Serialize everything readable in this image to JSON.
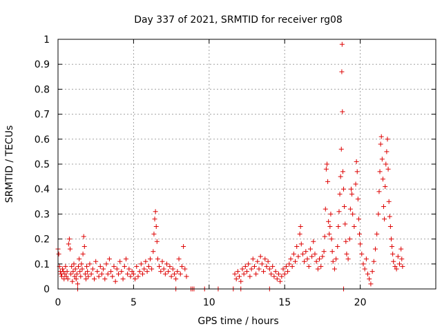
{
  "chart_data": {
    "type": "scatter",
    "title": "Day 337 of 2021, SRMTID for receiver rg08",
    "xlabel": "GPS time / hours",
    "ylabel": "SRMTID / TECUs",
    "xlim": [
      0,
      25
    ],
    "ylim": [
      0,
      1
    ],
    "xticks": [
      0,
      5,
      10,
      15,
      20
    ],
    "xtick_labels": [
      "0",
      "5",
      "10",
      "15",
      "20"
    ],
    "yticks": [
      0,
      0.1,
      0.2,
      0.3,
      0.4,
      0.5,
      0.6,
      0.7,
      0.8,
      0.9,
      1
    ],
    "ytick_labels": [
      "0",
      "0.1",
      "0.2",
      "0.3",
      "0.4",
      "0.5",
      "0.6",
      "0.7",
      "0.8",
      "0.9",
      "1"
    ],
    "grid": true,
    "marker": "+",
    "marker_color": "#dd0000",
    "series": [
      {
        "name": "SRMTID",
        "points": [
          [
            0.0,
            0.16
          ],
          [
            0.05,
            0.14
          ],
          [
            0.1,
            0.09
          ],
          [
            0.15,
            0.07
          ],
          [
            0.2,
            0.06
          ],
          [
            0.25,
            0.05
          ],
          [
            0.3,
            0.08
          ],
          [
            0.35,
            0.07
          ],
          [
            0.4,
            0.04
          ],
          [
            0.45,
            0.06
          ],
          [
            0.5,
            0.09
          ],
          [
            0.55,
            0.05
          ],
          [
            0.6,
            0.07
          ],
          [
            0.65,
            0.04
          ],
          [
            0.7,
            0.18
          ],
          [
            0.75,
            0.2
          ],
          [
            0.8,
            0.16
          ],
          [
            0.85,
            0.06
          ],
          [
            0.9,
            0.09
          ],
          [
            0.95,
            0.03
          ],
          [
            1.0,
            0.07
          ],
          [
            1.05,
            0.1
          ],
          [
            1.1,
            0.05
          ],
          [
            1.15,
            0.08
          ],
          [
            1.2,
            0.04
          ],
          [
            1.25,
            0.06
          ],
          [
            1.3,
            0.02
          ],
          [
            1.35,
            0.09
          ],
          [
            1.4,
            0.12
          ],
          [
            1.45,
            0.07
          ],
          [
            1.5,
            0.05
          ],
          [
            1.55,
            0.1
          ],
          [
            1.6,
            0.08
          ],
          [
            1.65,
            0.14
          ],
          [
            1.7,
            0.21
          ],
          [
            1.75,
            0.17
          ],
          [
            1.8,
            0.06
          ],
          [
            1.85,
            0.04
          ],
          [
            1.9,
            0.09
          ],
          [
            1.95,
            0.07
          ],
          [
            2.0,
            0.05
          ],
          [
            2.1,
            0.1
          ],
          [
            2.2,
            0.06
          ],
          [
            2.3,
            0.08
          ],
          [
            2.4,
            0.04
          ],
          [
            2.5,
            0.11
          ],
          [
            2.6,
            0.07
          ],
          [
            2.7,
            0.05
          ],
          [
            2.8,
            0.09
          ],
          [
            2.9,
            0.06
          ],
          [
            3.0,
            0.08
          ],
          [
            3.1,
            0.04
          ],
          [
            3.2,
            0.1
          ],
          [
            3.3,
            0.06
          ],
          [
            3.4,
            0.12
          ],
          [
            3.5,
            0.07
          ],
          [
            3.6,
            0.05
          ],
          [
            3.7,
            0.09
          ],
          [
            3.8,
            0.03
          ],
          [
            3.9,
            0.08
          ],
          [
            4.0,
            0.06
          ],
          [
            4.1,
            0.11
          ],
          [
            4.2,
            0.07
          ],
          [
            4.3,
            0.04
          ],
          [
            4.4,
            0.09
          ],
          [
            4.5,
            0.12
          ],
          [
            4.6,
            0.06
          ],
          [
            4.7,
            0.08
          ],
          [
            4.8,
            0.05
          ],
          [
            4.9,
            0.07
          ],
          [
            5.0,
            0.06
          ],
          [
            5.1,
            0.04
          ],
          [
            5.2,
            0.09
          ],
          [
            5.3,
            0.05
          ],
          [
            5.4,
            0.07
          ],
          [
            5.5,
            0.1
          ],
          [
            5.6,
            0.06
          ],
          [
            5.7,
            0.08
          ],
          [
            5.8,
            0.11
          ],
          [
            5.9,
            0.07
          ],
          [
            6.0,
            0.09
          ],
          [
            6.1,
            0.12
          ],
          [
            6.2,
            0.08
          ],
          [
            6.3,
            0.15
          ],
          [
            6.35,
            0.22
          ],
          [
            6.4,
            0.28
          ],
          [
            6.45,
            0.31
          ],
          [
            6.5,
            0.25
          ],
          [
            6.55,
            0.19
          ],
          [
            6.6,
            0.12
          ],
          [
            6.7,
            0.09
          ],
          [
            6.8,
            0.07
          ],
          [
            6.9,
            0.11
          ],
          [
            7.0,
            0.08
          ],
          [
            7.1,
            0.06
          ],
          [
            7.2,
            0.1
          ],
          [
            7.3,
            0.07
          ],
          [
            7.4,
            0.09
          ],
          [
            7.5,
            0.05
          ],
          [
            7.6,
            0.08
          ],
          [
            7.7,
            0.06
          ],
          [
            7.8,
            0.04
          ],
          [
            7.9,
            0.07
          ],
          [
            8.0,
            0.12
          ],
          [
            8.1,
            0.06
          ],
          [
            8.2,
            0.09
          ],
          [
            8.3,
            0.17
          ],
          [
            8.4,
            0.08
          ],
          [
            8.5,
            0.05
          ],
          [
            7.8,
            0.0
          ],
          [
            8.8,
            0.0
          ],
          [
            8.9,
            0.0
          ],
          [
            9.0,
            0.0
          ],
          [
            9.7,
            0.0
          ],
          [
            10.6,
            0.0
          ],
          [
            11.6,
            0.0
          ],
          [
            12.1,
            0.0
          ],
          [
            14.0,
            0.0
          ],
          [
            18.9,
            0.0
          ],
          [
            1.3,
            0.0
          ],
          [
            11.7,
            0.06
          ],
          [
            11.8,
            0.04
          ],
          [
            11.9,
            0.07
          ],
          [
            12.0,
            0.05
          ],
          [
            12.1,
            0.03
          ],
          [
            12.2,
            0.08
          ],
          [
            12.3,
            0.06
          ],
          [
            12.4,
            0.09
          ],
          [
            12.5,
            0.07
          ],
          [
            12.6,
            0.1
          ],
          [
            12.7,
            0.05
          ],
          [
            12.8,
            0.08
          ],
          [
            12.9,
            0.12
          ],
          [
            13.0,
            0.09
          ],
          [
            13.1,
            0.06
          ],
          [
            13.2,
            0.11
          ],
          [
            13.3,
            0.08
          ],
          [
            13.4,
            0.13
          ],
          [
            13.5,
            0.1
          ],
          [
            13.6,
            0.07
          ],
          [
            13.7,
            0.12
          ],
          [
            13.8,
            0.09
          ],
          [
            13.9,
            0.11
          ],
          [
            14.0,
            0.08
          ],
          [
            14.1,
            0.06
          ],
          [
            14.2,
            0.09
          ],
          [
            14.3,
            0.05
          ],
          [
            14.4,
            0.07
          ],
          [
            14.5,
            0.04
          ],
          [
            14.6,
            0.06
          ],
          [
            14.7,
            0.03
          ],
          [
            14.8,
            0.05
          ],
          [
            14.9,
            0.08
          ],
          [
            15.0,
            0.06
          ],
          [
            15.1,
            0.09
          ],
          [
            15.2,
            0.07
          ],
          [
            15.3,
            0.1
          ],
          [
            15.4,
            0.12
          ],
          [
            15.5,
            0.09
          ],
          [
            15.6,
            0.14
          ],
          [
            15.7,
            0.11
          ],
          [
            15.8,
            0.17
          ],
          [
            15.9,
            0.13
          ],
          [
            16.0,
            0.22
          ],
          [
            16.05,
            0.25
          ],
          [
            16.1,
            0.18
          ],
          [
            16.2,
            0.14
          ],
          [
            16.3,
            0.11
          ],
          [
            16.4,
            0.15
          ],
          [
            16.5,
            0.12
          ],
          [
            16.6,
            0.09
          ],
          [
            16.7,
            0.16
          ],
          [
            16.8,
            0.13
          ],
          [
            16.9,
            0.19
          ],
          [
            17.0,
            0.14
          ],
          [
            17.1,
            0.11
          ],
          [
            17.2,
            0.08
          ],
          [
            17.3,
            0.12
          ],
          [
            17.4,
            0.09
          ],
          [
            17.5,
            0.13
          ],
          [
            17.6,
            0.15
          ],
          [
            17.65,
            0.21
          ],
          [
            17.7,
            0.32
          ],
          [
            17.75,
            0.48
          ],
          [
            17.8,
            0.5
          ],
          [
            17.85,
            0.43
          ],
          [
            17.9,
            0.27
          ],
          [
            17.95,
            0.22
          ],
          [
            18.0,
            0.25
          ],
          [
            18.05,
            0.3
          ],
          [
            18.1,
            0.2
          ],
          [
            18.15,
            0.15
          ],
          [
            18.2,
            0.11
          ],
          [
            18.3,
            0.08
          ],
          [
            18.4,
            0.12
          ],
          [
            18.5,
            0.17
          ],
          [
            18.55,
            0.25
          ],
          [
            18.6,
            0.31
          ],
          [
            18.65,
            0.38
          ],
          [
            18.7,
            0.45
          ],
          [
            18.75,
            0.56
          ],
          [
            18.78,
            0.87
          ],
          [
            18.8,
            0.98
          ],
          [
            18.82,
            0.71
          ],
          [
            18.85,
            0.47
          ],
          [
            18.9,
            0.4
          ],
          [
            18.95,
            0.33
          ],
          [
            19.0,
            0.26
          ],
          [
            19.05,
            0.19
          ],
          [
            19.1,
            0.14
          ],
          [
            19.2,
            0.12
          ],
          [
            19.3,
            0.2
          ],
          [
            19.35,
            0.32
          ],
          [
            19.4,
            0.4
          ],
          [
            19.45,
            0.38
          ],
          [
            19.5,
            0.3
          ],
          [
            19.6,
            0.25
          ],
          [
            19.7,
            0.42
          ],
          [
            19.75,
            0.51
          ],
          [
            19.8,
            0.47
          ],
          [
            19.85,
            0.36
          ],
          [
            19.9,
            0.28
          ],
          [
            19.95,
            0.22
          ],
          [
            20.0,
            0.18
          ],
          [
            20.1,
            0.14
          ],
          [
            20.2,
            0.1
          ],
          [
            20.3,
            0.08
          ],
          [
            20.4,
            0.12
          ],
          [
            20.5,
            0.06
          ],
          [
            20.6,
            0.04
          ],
          [
            20.7,
            0.02
          ],
          [
            20.8,
            0.07
          ],
          [
            20.9,
            0.11
          ],
          [
            21.0,
            0.16
          ],
          [
            21.1,
            0.22
          ],
          [
            21.2,
            0.3
          ],
          [
            21.25,
            0.39
          ],
          [
            21.3,
            0.47
          ],
          [
            21.35,
            0.58
          ],
          [
            21.4,
            0.61
          ],
          [
            21.45,
            0.52
          ],
          [
            21.5,
            0.44
          ],
          [
            21.55,
            0.33
          ],
          [
            21.6,
            0.28
          ],
          [
            21.65,
            0.41
          ],
          [
            21.7,
            0.5
          ],
          [
            21.75,
            0.55
          ],
          [
            21.8,
            0.6
          ],
          [
            21.85,
            0.48
          ],
          [
            21.9,
            0.35
          ],
          [
            21.95,
            0.29
          ],
          [
            22.0,
            0.25
          ],
          [
            22.05,
            0.2
          ],
          [
            22.1,
            0.17
          ],
          [
            22.15,
            0.14
          ],
          [
            22.2,
            0.11
          ],
          [
            22.3,
            0.09
          ],
          [
            22.4,
            0.08
          ],
          [
            22.5,
            0.13
          ],
          [
            22.6,
            0.1
          ],
          [
            22.7,
            0.16
          ],
          [
            22.75,
            0.12
          ],
          [
            22.8,
            0.09
          ]
        ]
      }
    ]
  }
}
